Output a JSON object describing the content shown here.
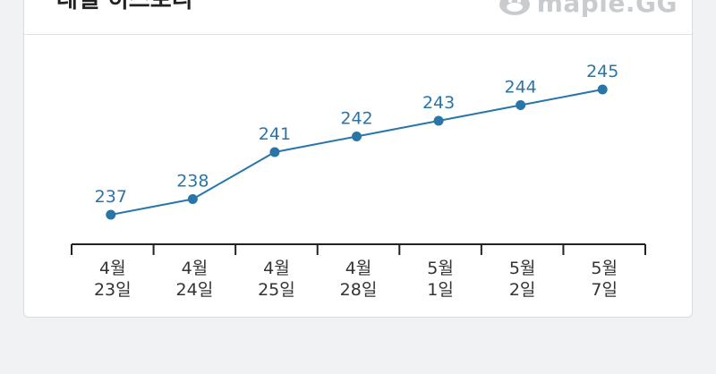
{
  "header": {
    "title": "레벨 히스토리",
    "brand": "maple.GG"
  },
  "colors": {
    "line": "#2a75a8",
    "label": "#2a75a8",
    "axis": "#222222"
  },
  "chart_data": {
    "type": "line",
    "title": "",
    "xlabel": "",
    "ylabel": "",
    "categories": [
      [
        "4월",
        "23일"
      ],
      [
        "4월",
        "24일"
      ],
      [
        "4월",
        "25일"
      ],
      [
        "4월",
        "28일"
      ],
      [
        "5월",
        "1일"
      ],
      [
        "5월",
        "2일"
      ],
      [
        "5월",
        "7일"
      ]
    ],
    "values": [
      237,
      238,
      241,
      242,
      243,
      244,
      245
    ],
    "data_labels": [
      "237",
      "238",
      "241",
      "242",
      "243",
      "244",
      "245"
    ],
    "ylim": [
      236,
      246
    ],
    "grid": false,
    "legend": "none"
  }
}
